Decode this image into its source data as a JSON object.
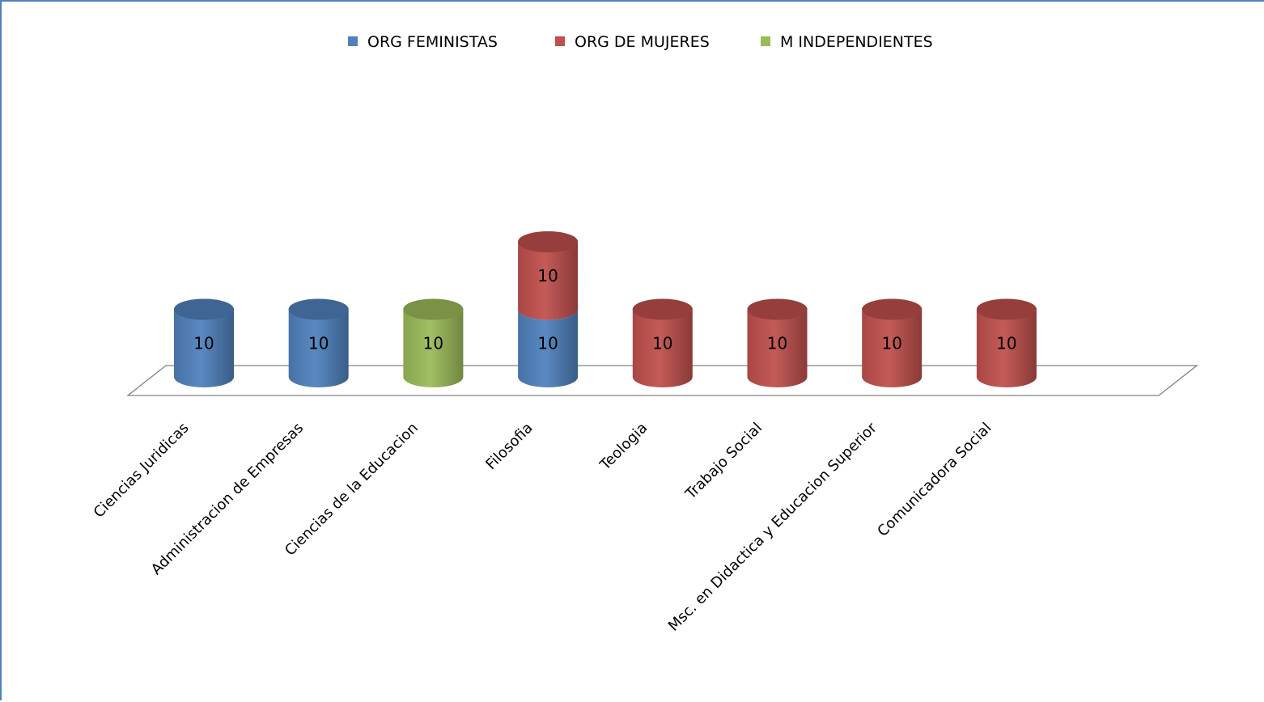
{
  "chart_data": {
    "type": "bar",
    "stacked": true,
    "style": "3d-cylinder",
    "title": "",
    "xlabel": "",
    "ylabel": "",
    "ylim": [
      0,
      20
    ],
    "grid": false,
    "legend_position": "top",
    "categories": [
      "Ciencias Juridicas",
      "Administracion de Empresas",
      "Ciencias de la Educacion",
      "Filosofia",
      "Teologia",
      "Trabajo Social",
      "Msc. en Didactica y Educacion Superior",
      "Comunicadora Social"
    ],
    "series": [
      {
        "name": "ORG FEMINISTAS",
        "color": "#4f81bd",
        "values": [
          10,
          10,
          0,
          10,
          0,
          0,
          0,
          0
        ]
      },
      {
        "name": "ORG DE MUJERES",
        "color": "#c0504d",
        "values": [
          0,
          0,
          0,
          10,
          10,
          10,
          10,
          10
        ]
      },
      {
        "name": "M INDEPENDIENTES",
        "color": "#9bbb59",
        "values": [
          0,
          0,
          10,
          0,
          0,
          0,
          0,
          0
        ]
      }
    ]
  }
}
